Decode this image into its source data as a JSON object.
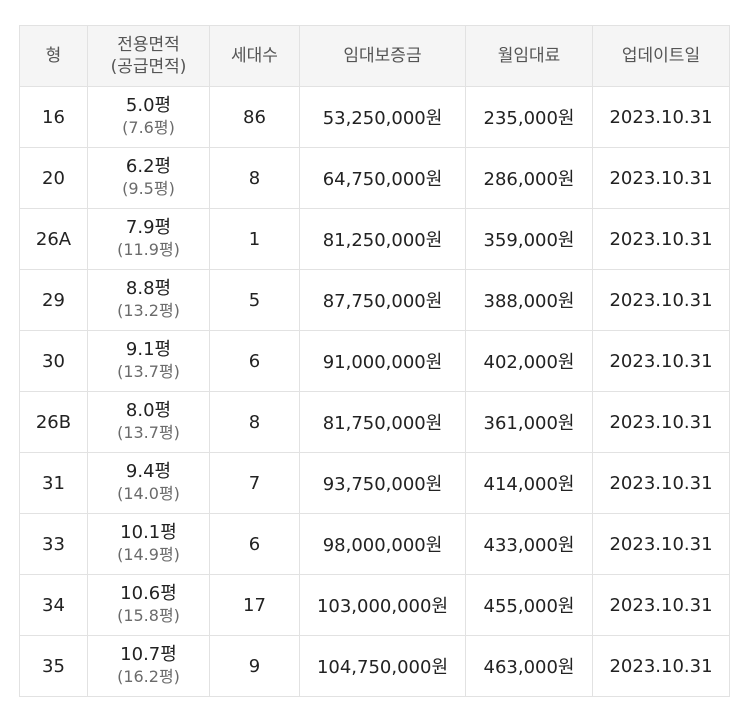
{
  "headers": {
    "type": "형",
    "area_line1": "전용면적",
    "area_line2": "(공급면적)",
    "households": "세대수",
    "deposit": "임대보증금",
    "rent": "월임대료",
    "updated": "업데이트일"
  },
  "rows": [
    {
      "type": "16",
      "area": "5.0평",
      "supply": "(7.6평)",
      "households": "86",
      "deposit": "53,250,000원",
      "rent": "235,000원",
      "updated": "2023.10.31"
    },
    {
      "type": "20",
      "area": "6.2평",
      "supply": "(9.5평)",
      "households": "8",
      "deposit": "64,750,000원",
      "rent": "286,000원",
      "updated": "2023.10.31"
    },
    {
      "type": "26A",
      "area": "7.9평",
      "supply": "(11.9평)",
      "households": "1",
      "deposit": "81,250,000원",
      "rent": "359,000원",
      "updated": "2023.10.31"
    },
    {
      "type": "29",
      "area": "8.8평",
      "supply": "(13.2평)",
      "households": "5",
      "deposit": "87,750,000원",
      "rent": "388,000원",
      "updated": "2023.10.31"
    },
    {
      "type": "30",
      "area": "9.1평",
      "supply": "(13.7평)",
      "households": "6",
      "deposit": "91,000,000원",
      "rent": "402,000원",
      "updated": "2023.10.31"
    },
    {
      "type": "26B",
      "area": "8.0평",
      "supply": "(13.7평)",
      "households": "8",
      "deposit": "81,750,000원",
      "rent": "361,000원",
      "updated": "2023.10.31"
    },
    {
      "type": "31",
      "area": "9.4평",
      "supply": "(14.0평)",
      "households": "7",
      "deposit": "93,750,000원",
      "rent": "414,000원",
      "updated": "2023.10.31"
    },
    {
      "type": "33",
      "area": "10.1평",
      "supply": "(14.9평)",
      "households": "6",
      "deposit": "98,000,000원",
      "rent": "433,000원",
      "updated": "2023.10.31"
    },
    {
      "type": "34",
      "area": "10.6평",
      "supply": "(15.8평)",
      "households": "17",
      "deposit": "103,000,000원",
      "rent": "455,000원",
      "updated": "2023.10.31"
    },
    {
      "type": "35",
      "area": "10.7평",
      "supply": "(16.2평)",
      "households": "9",
      "deposit": "104,750,000원",
      "rent": "463,000원",
      "updated": "2023.10.31"
    }
  ]
}
